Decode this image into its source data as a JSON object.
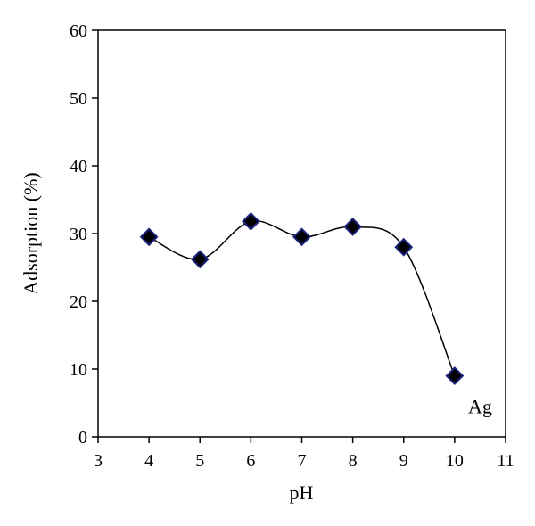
{
  "chart_data": {
    "type": "line",
    "title": "",
    "xlabel": "pH",
    "ylabel": "Adsorption (%)",
    "xlim": [
      3,
      11
    ],
    "ylim": [
      0,
      60
    ],
    "x_ticks": [
      3,
      4,
      5,
      6,
      7,
      8,
      9,
      10,
      11
    ],
    "y_ticks": [
      0,
      10,
      20,
      30,
      40,
      50,
      60
    ],
    "grid": false,
    "series": [
      {
        "x": [
          4,
          5,
          6,
          7,
          8,
          9,
          10
        ],
        "y": [
          29.5,
          26.2,
          31.8,
          29.5,
          31.0,
          28.0,
          9.0
        ],
        "marker": "diamond",
        "marker_color": "#000000",
        "marker_edge_color": "#1a237e",
        "line_color": "#000000",
        "smooth": true
      }
    ],
    "annotations": [
      {
        "text": "Ag",
        "x": 10.5,
        "y": 3.5
      }
    ]
  }
}
